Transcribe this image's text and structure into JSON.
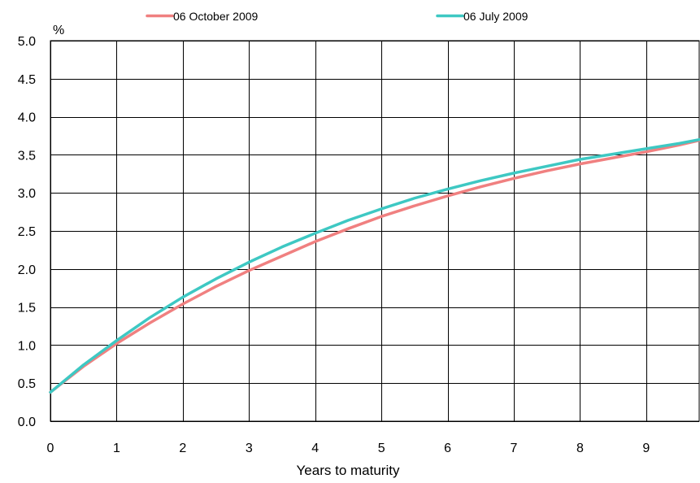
{
  "chart_data": {
    "type": "line",
    "title": "",
    "xlabel": "Years to maturity",
    "ylabel": "%",
    "xlim": [
      0,
      9.8
    ],
    "ylim": [
      0,
      5
    ],
    "x_ticks": [
      0,
      1,
      2,
      3,
      4,
      5,
      6,
      7,
      8,
      9
    ],
    "y_ticks": [
      0.0,
      0.5,
      1.0,
      1.5,
      2.0,
      2.5,
      3.0,
      3.5,
      4.0,
      4.5,
      5.0
    ],
    "y_tick_labels": [
      "0.0",
      "0.5",
      "1.0",
      "1.5",
      "2.0",
      "2.5",
      "3.0",
      "3.5",
      "4.0",
      "4.5",
      "5.0"
    ],
    "grid": true,
    "legend_position": "top",
    "series": [
      {
        "name": "06 October 2009",
        "color": "#f08080",
        "points": [
          [
            0,
            0.38
          ],
          [
            0.5,
            0.72
          ],
          [
            1,
            1.02
          ],
          [
            1.5,
            1.29
          ],
          [
            2,
            1.54
          ],
          [
            2.5,
            1.77
          ],
          [
            3,
            1.98
          ],
          [
            3.5,
            2.17
          ],
          [
            4,
            2.36
          ],
          [
            4.5,
            2.53
          ],
          [
            5,
            2.69
          ],
          [
            5.5,
            2.83
          ],
          [
            6,
            2.96
          ],
          [
            6.5,
            3.08
          ],
          [
            7,
            3.19
          ],
          [
            7.5,
            3.29
          ],
          [
            8,
            3.38
          ],
          [
            8.5,
            3.46
          ],
          [
            9,
            3.54
          ],
          [
            9.5,
            3.63
          ],
          [
            9.8,
            3.69
          ]
        ]
      },
      {
        "name": "06 July 2009",
        "color": "#3ec8c3",
        "points": [
          [
            0,
            0.38
          ],
          [
            0.5,
            0.74
          ],
          [
            1,
            1.06
          ],
          [
            1.5,
            1.36
          ],
          [
            2,
            1.63
          ],
          [
            2.5,
            1.87
          ],
          [
            3,
            2.09
          ],
          [
            3.5,
            2.29
          ],
          [
            4,
            2.47
          ],
          [
            4.5,
            2.64
          ],
          [
            5,
            2.79
          ],
          [
            5.5,
            2.93
          ],
          [
            6,
            3.05
          ],
          [
            6.5,
            3.16
          ],
          [
            7,
            3.26
          ],
          [
            7.5,
            3.35
          ],
          [
            8,
            3.44
          ],
          [
            8.5,
            3.51
          ],
          [
            9,
            3.58
          ],
          [
            9.5,
            3.65
          ],
          [
            9.8,
            3.7
          ]
        ]
      }
    ]
  }
}
